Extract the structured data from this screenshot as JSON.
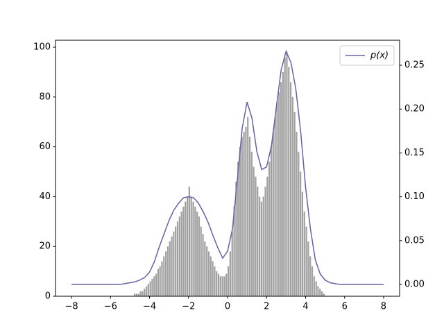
{
  "chart_data": [
    {
      "type": "histogram",
      "bins": [
        -5.0,
        -4.9,
        -4.8,
        -4.7,
        -4.6,
        -4.5,
        -4.4,
        -4.3,
        -4.2,
        -4.1,
        -4.0,
        -3.9,
        -3.8,
        -3.7,
        -3.6,
        -3.5,
        -3.4,
        -3.3,
        -3.2,
        -3.1,
        -3.0,
        -2.9,
        -2.8,
        -2.7,
        -2.6,
        -2.5,
        -2.4,
        -2.3,
        -2.2,
        -2.1,
        -2.0,
        -1.9,
        -1.8,
        -1.7,
        -1.6,
        -1.5,
        -1.4,
        -1.3,
        -1.2,
        -1.1,
        -1.0,
        -0.9,
        -0.8,
        -0.7,
        -0.6,
        -0.5,
        -0.4,
        -0.3,
        -0.2,
        -0.1,
        0.0,
        0.1,
        0.2,
        0.3,
        0.4,
        0.5,
        0.6,
        0.7,
        0.8,
        0.9,
        1.0,
        1.1,
        1.2,
        1.3,
        1.4,
        1.5,
        1.6,
        1.7,
        1.8,
        1.9,
        2.0,
        2.1,
        2.2,
        2.3,
        2.4,
        2.5,
        2.6,
        2.7,
        2.8,
        2.9,
        3.0,
        3.1,
        3.2,
        3.3,
        3.4,
        3.5,
        3.6,
        3.7,
        3.8,
        3.9,
        4.0,
        4.1,
        4.2,
        4.3,
        4.4,
        4.5,
        4.6,
        4.7,
        4.8,
        4.9,
        5.0
      ],
      "counts": [
        0,
        0,
        1,
        1,
        1,
        2,
        2,
        3,
        4,
        5,
        6,
        7,
        8,
        9,
        11,
        12,
        14,
        16,
        18,
        20,
        22,
        24,
        26,
        28,
        30,
        32,
        34,
        36,
        38,
        40,
        44,
        40,
        38,
        36,
        34,
        32,
        28,
        25,
        22,
        20,
        18,
        16,
        14,
        12,
        10,
        9,
        8,
        8,
        8,
        9,
        12,
        18,
        26,
        36,
        46,
        54,
        60,
        64,
        66,
        68,
        72,
        64,
        58,
        52,
        48,
        44,
        40,
        38,
        40,
        44,
        48,
        54,
        60,
        66,
        72,
        78,
        82,
        86,
        90,
        96,
        98,
        92,
        86,
        80,
        74,
        66,
        58,
        50,
        42,
        34,
        28,
        22,
        16,
        12,
        8,
        6,
        4,
        3,
        2,
        1
      ],
      "color": "#a0a0a0",
      "xlim": [
        -8.82,
        8.82
      ],
      "xticks": [
        {
          "value": -8,
          "label": "−8"
        },
        {
          "value": -6,
          "label": "−6"
        },
        {
          "value": -4,
          "label": "−4"
        },
        {
          "value": -2,
          "label": "−2"
        },
        0,
        2,
        4,
        6,
        8
      ],
      "ylim": [
        0,
        102.8
      ],
      "yticks": [
        0,
        20,
        40,
        60,
        80,
        100
      ]
    },
    {
      "type": "line",
      "x": [
        -8,
        -7.75,
        -7.5,
        -7.25,
        -7,
        -6.75,
        -6.5,
        -6.25,
        -6,
        -5.75,
        -5.5,
        -5.25,
        -5,
        -4.75,
        -4.5,
        -4.25,
        -4,
        -3.75,
        -3.5,
        -3.25,
        -3,
        -2.75,
        -2.5,
        -2.25,
        -2,
        -1.75,
        -1.5,
        -1.25,
        -1,
        -0.75,
        -0.5,
        -0.25,
        0,
        0.25,
        0.5,
        0.75,
        1,
        1.25,
        1.5,
        1.75,
        2,
        2.25,
        2.5,
        2.75,
        3,
        3.25,
        3.5,
        3.75,
        4,
        4.25,
        4.5,
        4.75,
        5,
        5.25,
        5.5,
        5.75,
        6,
        6.25,
        6.5,
        6.75,
        7,
        7.25,
        7.5,
        7.75,
        8
      ],
      "series": [
        {
          "name": "p(x)",
          "color": "#6262a6",
          "axis": "y2",
          "values": [
            0,
            0,
            0,
            0,
            0,
            0,
            0,
            0,
            0,
            0,
            0,
            0.001,
            0.002,
            0.003,
            0.005,
            0.008,
            0.014,
            0.026,
            0.043,
            0.058,
            0.073,
            0.085,
            0.093,
            0.099,
            0.1,
            0.099,
            0.093,
            0.083,
            0.071,
            0.056,
            0.042,
            0.03,
            0.038,
            0.063,
            0.119,
            0.178,
            0.208,
            0.19,
            0.152,
            0.131,
            0.134,
            0.158,
            0.202,
            0.245,
            0.266,
            0.253,
            0.223,
            0.174,
            0.111,
            0.063,
            0.028,
            0.012,
            0.005,
            0.002,
            0.001,
            0,
            0,
            0,
            0,
            0,
            0,
            0,
            0,
            0,
            0
          ]
        }
      ],
      "y2lim": [
        -0.0134,
        0.2785
      ],
      "y2ticks": [
        {
          "value": 0,
          "label": "0.00"
        },
        {
          "value": 0.05,
          "label": "0.05"
        },
        {
          "value": 0.1,
          "label": "0.10"
        },
        {
          "value": 0.15,
          "label": "0.15"
        },
        {
          "value": 0.2,
          "label": "0.20"
        },
        {
          "value": 0.25,
          "label": "0.25"
        }
      ],
      "legend": "upper right"
    }
  ]
}
